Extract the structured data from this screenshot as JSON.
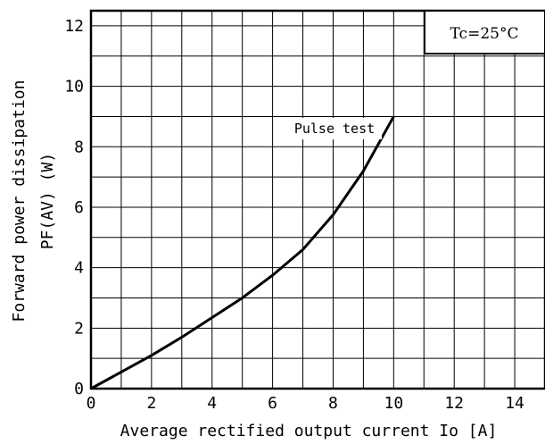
{
  "chart_data": {
    "type": "line",
    "title": "",
    "xlabel": "Average rectified output current Io [A]",
    "ylabel_line1": "Forward power dissipation",
    "ylabel_line2": "PF(AV)  (W)",
    "xlim": [
      0,
      15
    ],
    "ylim": [
      0,
      12.5
    ],
    "xticks": [
      "0",
      "2",
      "4",
      "6",
      "8",
      "10",
      "12",
      "14"
    ],
    "yticks": [
      "0",
      "2",
      "4",
      "6",
      "8",
      "10",
      "12"
    ],
    "grid": true,
    "condition": "Tc=25°C",
    "annotation": "Pulse test",
    "series": [
      {
        "x": [
          0,
          1,
          2,
          3,
          4,
          5,
          6,
          7,
          8,
          9,
          10
        ],
        "y": [
          0,
          0.55,
          1.1,
          1.7,
          2.35,
          3.0,
          3.75,
          4.6,
          5.75,
          7.2,
          9.0
        ]
      }
    ]
  }
}
